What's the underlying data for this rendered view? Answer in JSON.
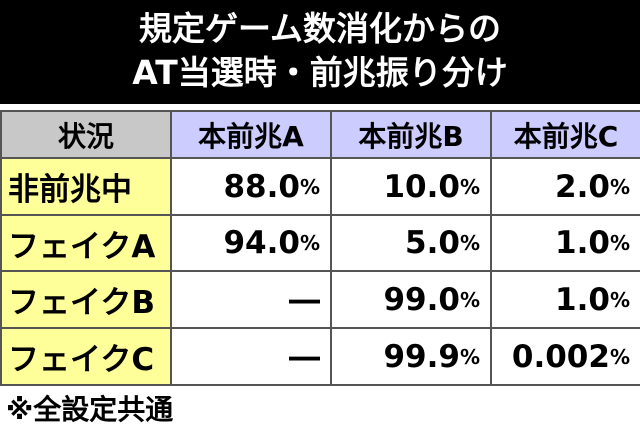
{
  "header": {
    "title_lines": [
      "規定ゲーム数消化からの",
      "AT当選時・前兆振り分け"
    ]
  },
  "table": {
    "columns": [
      "状況",
      "本前兆A",
      "本前兆B",
      "本前兆C"
    ],
    "rows": [
      [
        "非前兆中",
        "88.0%",
        "10.0%",
        "2.0%"
      ],
      [
        "フェイクA",
        "94.0%",
        "5.0%",
        "1.0%"
      ],
      [
        "フェイクB",
        "―",
        "99.0%",
        "1.0%"
      ],
      [
        "フェイクC",
        "―",
        "99.9%",
        "0.002%"
      ]
    ]
  },
  "footnote": "※全設定共通"
}
